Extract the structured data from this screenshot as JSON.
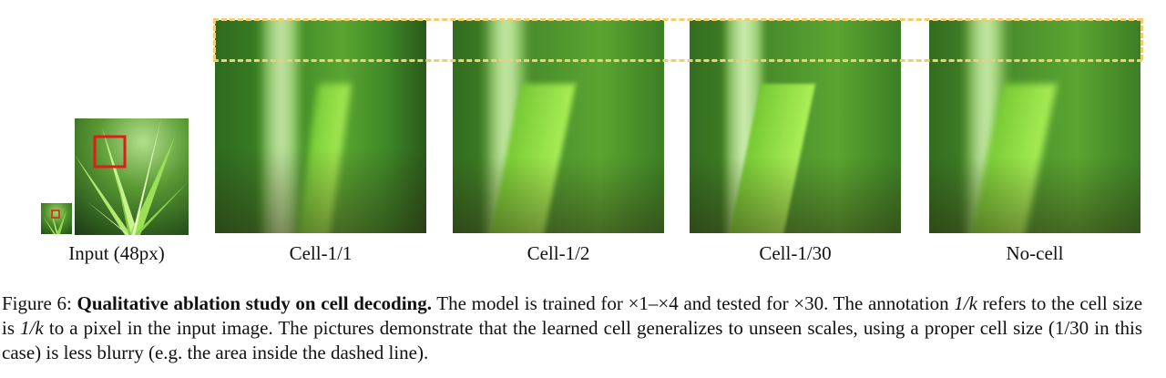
{
  "figure": {
    "labels": {
      "input": "Input (48px)",
      "cell_1": "Cell-1/1",
      "cell_2": "Cell-1/2",
      "cell_30": "Cell-1/30",
      "no_cell": "No-cell"
    },
    "caption": {
      "prefix": "Figure 6:",
      "title": "Qualitative ablation study on cell decoding.",
      "text1": "The model is trained for ×1–×4 and tested for ×30. The annotation",
      "frac1": "1/k",
      "text2": "refers to the cell size is",
      "frac2": "1/k",
      "text3": "to a pixel in the input image. The pictures demonstrate that the learned cell generalizes to unseen scales, using a proper cell size (1/30 in this case) is less blurry (e.g. the area inside the dashed line)."
    }
  },
  "colors": {
    "dashed_line": "#f2cf6e",
    "crop_box": "#e01b1b",
    "grass_dark": "#2f6e1f",
    "grass_light": "#7fd63b"
  }
}
